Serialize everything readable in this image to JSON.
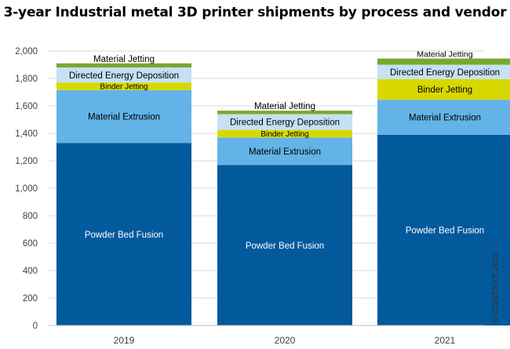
{
  "title": "3-year Industrial metal 3D printer shipments by process and vendor",
  "copyright": "© CONTEXT 2022",
  "chart_data": {
    "type": "bar",
    "stacked": true,
    "title": "3-year Industrial metal 3D printer shipments by process and vendor",
    "xlabel": "",
    "ylabel": "",
    "categories": [
      "2019",
      "2020",
      "2021"
    ],
    "ylim": [
      0,
      2000
    ],
    "yticks": [
      0,
      200,
      400,
      600,
      800,
      1000,
      1200,
      1400,
      1600,
      1800,
      2000
    ],
    "ytick_labels": [
      "0",
      "200",
      "400",
      "600",
      "800",
      "1,000",
      "1,200",
      "1,400",
      "1,600",
      "1,800",
      "2,000"
    ],
    "grid": true,
    "legend": "none (series labelled inside bars)",
    "series": [
      {
        "name": "Powder Bed Fusion",
        "color": "#02599c",
        "text_color": "#ffffff",
        "values": [
          1330,
          1170,
          1390
        ]
      },
      {
        "name": "Material Extrusion",
        "color": "#63b3e8",
        "text_color": "#000000",
        "values": [
          385,
          200,
          255
        ]
      },
      {
        "name": "Binder Jetting",
        "color": "#d8d800",
        "text_color": "#000000",
        "values": [
          55,
          55,
          150
        ]
      },
      {
        "name": "Directed Energy Deposition",
        "color": "#c5e1f3",
        "text_color": "#000000",
        "values": [
          110,
          115,
          105
        ]
      },
      {
        "name": "Material Jetting",
        "color": "#79a82e",
        "text_color": "#000000",
        "values": [
          30,
          25,
          45
        ]
      }
    ]
  }
}
